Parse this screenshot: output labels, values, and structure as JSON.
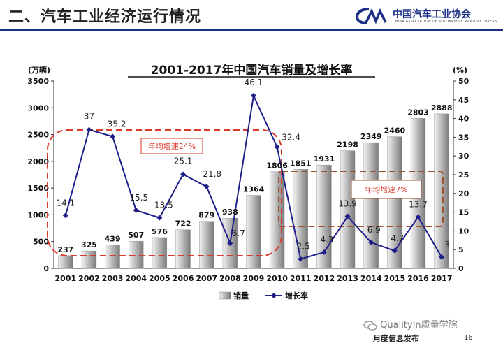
{
  "header": {
    "title": "二、汽车工业经济运行情况",
    "logo_cn": "中国汽车工业协会",
    "logo_en": "CHINA ASSOCIATION OF AUTOMOBILE MANUFACTURERS"
  },
  "footer": {
    "label": "月度信息发布",
    "page": "16",
    "watermark": "QualityIn质量学院"
  },
  "chart_data": {
    "type": "bar+line",
    "title": "2001-2017年中国汽车销量及增长率",
    "ylabel_left": "(万辆)",
    "ylabel_right": "(%)",
    "categories": [
      "2001",
      "2002",
      "2003",
      "2004",
      "2005",
      "2006",
      "2007",
      "2008",
      "2009",
      "2010",
      "2011",
      "2012",
      "2013",
      "2014",
      "2015",
      "2016",
      "2017"
    ],
    "series": [
      {
        "name": "销量",
        "axis": "left",
        "kind": "bar",
        "values": [
          237,
          325,
          439,
          507,
          576,
          722,
          879,
          938,
          1364,
          1806,
          1851,
          1931,
          2198,
          2349,
          2460,
          2803,
          2888
        ],
        "labels": [
          "237",
          "325",
          "439",
          "507",
          "576",
          "722",
          "879",
          "938",
          "1364",
          "1806",
          "1851",
          "1931",
          "2198",
          "2349",
          "2460",
          "2803",
          "2888"
        ]
      },
      {
        "name": "增长率",
        "axis": "right",
        "kind": "line",
        "values": [
          14.1,
          37,
          35.2,
          15.5,
          13.5,
          25.1,
          21.8,
          6.7,
          46.1,
          32.4,
          2.5,
          4.3,
          13.9,
          6.9,
          4.7,
          13.7,
          3
        ],
        "labels": [
          "14.1",
          "37",
          "35.2",
          "15.5",
          "13.5",
          "25.1",
          "21.8",
          "6.7",
          "46.1",
          "32.4",
          "2.5",
          "4.3",
          "13.9",
          "6.9",
          "4.7",
          "13.7",
          "3"
        ]
      }
    ],
    "ylim_left": [
      0,
      3500
    ],
    "yticks_left": [
      0,
      500,
      1000,
      1500,
      2000,
      2500,
      3000,
      3500
    ],
    "ylim_right": [
      0,
      50
    ],
    "yticks_right": [
      0,
      5,
      10,
      15,
      20,
      25,
      30,
      35,
      40,
      45,
      50
    ],
    "annotations": [
      "年均增速24%",
      "年均增速7%"
    ],
    "colors": {
      "line": "#1f1f8a",
      "bar_light": "#f2f2f2",
      "bar_dark": "#7a7a7a",
      "note_red": "#d93a2b",
      "note_brown": "#a0522d",
      "header": "#1b2f86"
    }
  }
}
